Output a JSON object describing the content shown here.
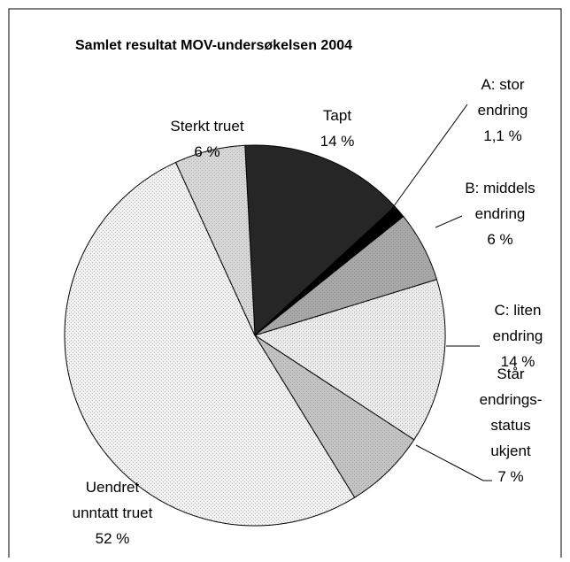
{
  "chart_data": {
    "type": "pie",
    "title": "Samlet resultat MOV-undersøkelsen 2004",
    "categories": [
      "Tapt",
      "A: stor\nendring",
      "B: middels\nendring",
      "C: liten\nendring",
      "Står\nendrings-\nstatus\nukjent",
      "Uendret\nunntatt truet",
      "Sterkt truet"
    ],
    "values": [
      14,
      1.1,
      6,
      14,
      7,
      52,
      6
    ],
    "value_labels": [
      "14 %",
      "1,1 %",
      "6 %",
      "14 %",
      "7 %",
      "52 %",
      "6 %"
    ],
    "colors": [
      "#262626",
      "#000000",
      "#a8a8a8",
      "#ececec",
      "#c4c4c4",
      "#f2f2f2",
      "#d8d8d8"
    ]
  }
}
